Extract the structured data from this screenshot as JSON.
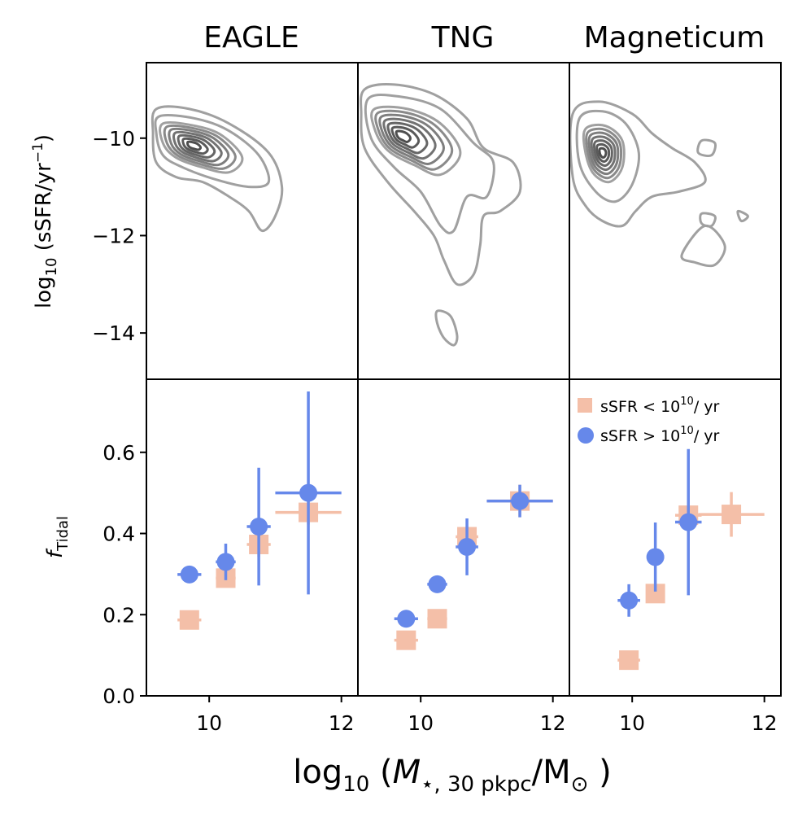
{
  "chart_data": {
    "type": "scatter",
    "panel_titles": [
      "EAGLE",
      "TNG",
      "Magneticum"
    ],
    "top_ylabel": {
      "prefix": "log",
      "sub": "10",
      "body": " (sSFR/yr",
      "sup": "−1",
      "suffix": ")"
    },
    "bottom_ylabel": {
      "main": "f",
      "sub": "Tidal"
    },
    "xlabel": {
      "prefix": "log",
      "sub1": "10",
      "open": " (",
      "mstar": "M",
      "sub2": "⋆, 30 pkpc",
      "slash": "/M",
      "sun": "⊙",
      "close": " )"
    },
    "xlim": [
      9.05,
      12.25
    ],
    "xticks": [
      10,
      12
    ],
    "xtick_labels": [
      "10",
      "12"
    ],
    "top_ylim": [
      -14.95,
      -8.45
    ],
    "top_yticks": [
      -10,
      -12,
      -14
    ],
    "top_ytick_labels": [
      "−10",
      "−12",
      "−14"
    ],
    "bottom_ylim": [
      0.0,
      0.78
    ],
    "bottom_yticks": [
      0.0,
      0.2,
      0.4,
      0.6
    ],
    "bottom_ytick_labels": [
      "0.0",
      "0.2",
      "0.4",
      "0.6"
    ],
    "legend": [
      {
        "name": "sSFR < 10^10 / yr",
        "label_main": "sSFR < 10",
        "label_sup": "10",
        "label_tail": "/ yr",
        "color": "#f4bfa8",
        "marker": "square"
      },
      {
        "name": "sSFR > 10^10 / yr",
        "label_main": "sSFR > 10",
        "label_sup": "10",
        "label_tail": "/ yr",
        "color": "#6688ea",
        "marker": "circle"
      }
    ],
    "colors": {
      "quiescent": "#f4bfa8",
      "starforming": "#6688ea",
      "contour_dark": "#555555",
      "contour_light": "#a0a0a0"
    },
    "panels": [
      {
        "name": "EAGLE",
        "density_peak": {
          "x": 9.75,
          "y": -10.15
        },
        "contours": [
          [
            [
              9.2,
              -9.4
            ],
            [
              9.7,
              -9.4
            ],
            [
              10.3,
              -9.7
            ],
            [
              10.9,
              -10.3
            ],
            [
              11.1,
              -11.0
            ],
            [
              11.0,
              -11.6
            ],
            [
              10.8,
              -11.9
            ],
            [
              10.6,
              -11.5
            ],
            [
              10.3,
              -11.2
            ],
            [
              9.9,
              -10.9
            ],
            [
              9.5,
              -10.8
            ],
            [
              9.2,
              -10.5
            ],
            [
              9.15,
              -9.9
            ]
          ],
          [
            [
              9.25,
              -9.55
            ],
            [
              9.8,
              -9.6
            ],
            [
              10.3,
              -9.85
            ],
            [
              10.75,
              -10.35
            ],
            [
              10.9,
              -10.9
            ],
            [
              10.6,
              -11.0
            ],
            [
              10.1,
              -10.85
            ],
            [
              9.6,
              -10.6
            ],
            [
              9.3,
              -10.35
            ],
            [
              9.2,
              -9.9
            ]
          ],
          [
            [
              9.3,
              -9.7
            ],
            [
              9.8,
              -9.75
            ],
            [
              10.2,
              -9.95
            ],
            [
              10.5,
              -10.4
            ],
            [
              10.3,
              -10.7
            ],
            [
              9.9,
              -10.6
            ],
            [
              9.5,
              -10.4
            ],
            [
              9.3,
              -10.1
            ]
          ]
        ],
        "series": [
          {
            "name": "quiescent",
            "points": [
              {
                "x": 9.7,
                "y": 0.187,
                "xerr": 0.18,
                "yerr": 0.02
              },
              {
                "x": 10.25,
                "y": 0.29,
                "xerr": 0.15,
                "yerr": 0.02
              },
              {
                "x": 10.75,
                "y": 0.373,
                "xerr": 0.18,
                "yerr": 0.03
              },
              {
                "x": 11.5,
                "y": 0.452,
                "xerr": 0.5,
                "yerr": 0.03
              }
            ]
          },
          {
            "name": "starforming",
            "points": [
              {
                "x": 9.7,
                "y": 0.299,
                "xerr": 0.18,
                "yerr": 0.015
              },
              {
                "x": 10.25,
                "y": 0.33,
                "xerr": 0.15,
                "yerr": 0.045
              },
              {
                "x": 10.75,
                "y": 0.417,
                "xerr": 0.18,
                "yerr": 0.145
              },
              {
                "x": 11.5,
                "y": 0.5,
                "xerr": 0.5,
                "yerr": 0.25
              }
            ]
          }
        ]
      },
      {
        "name": "TNG",
        "density_peak": {
          "x": 9.7,
          "y": -9.95
        },
        "contours": [
          [
            [
              9.15,
              -9.0
            ],
            [
              9.6,
              -8.9
            ],
            [
              10.2,
              -9.1
            ],
            [
              10.7,
              -9.6
            ],
            [
              10.95,
              -10.2
            ],
            [
              11.4,
              -10.5
            ],
            [
              11.5,
              -11.1
            ],
            [
              11.2,
              -11.5
            ],
            [
              10.95,
              -11.6
            ],
            [
              10.9,
              -12.2
            ],
            [
              10.8,
              -12.8
            ],
            [
              10.55,
              -13.0
            ],
            [
              10.35,
              -12.5
            ],
            [
              10.2,
              -12.0
            ],
            [
              9.9,
              -11.5
            ],
            [
              9.5,
              -10.9
            ],
            [
              9.15,
              -10.2
            ],
            [
              9.1,
              -9.5
            ]
          ],
          [
            [
              9.2,
              -9.2
            ],
            [
              9.7,
              -9.15
            ],
            [
              10.3,
              -9.4
            ],
            [
              10.8,
              -10.1
            ],
            [
              11.1,
              -10.5
            ],
            [
              11.0,
              -11.2
            ],
            [
              10.7,
              -11.2
            ],
            [
              10.5,
              -11.9
            ],
            [
              10.3,
              -11.8
            ],
            [
              10.0,
              -11.1
            ],
            [
              9.6,
              -10.6
            ],
            [
              9.25,
              -10.0
            ]
          ],
          [
            [
              9.3,
              -9.4
            ],
            [
              9.8,
              -9.4
            ],
            [
              10.3,
              -9.7
            ],
            [
              10.6,
              -10.3
            ],
            [
              10.3,
              -10.75
            ],
            [
              9.9,
              -10.55
            ],
            [
              9.5,
              -10.25
            ],
            [
              9.3,
              -9.8
            ]
          ],
          [
            [
              10.25,
              -13.55
            ],
            [
              10.45,
              -13.65
            ],
            [
              10.55,
              -14.05
            ],
            [
              10.5,
              -14.25
            ],
            [
              10.35,
              -14.1
            ],
            [
              10.25,
              -13.8
            ]
          ]
        ],
        "series": [
          {
            "name": "quiescent",
            "points": [
              {
                "x": 9.78,
                "y": 0.137,
                "xerr": 0.18,
                "yerr": 0.015
              },
              {
                "x": 10.25,
                "y": 0.19,
                "xerr": 0.15,
                "yerr": 0.015
              },
              {
                "x": 10.7,
                "y": 0.392,
                "xerr": 0.17,
                "yerr": 0.025
              },
              {
                "x": 11.5,
                "y": 0.48,
                "xerr": 0.5,
                "yerr": 0.04
              }
            ]
          },
          {
            "name": "starforming",
            "points": [
              {
                "x": 9.78,
                "y": 0.19,
                "xerr": 0.18,
                "yerr": 0.015
              },
              {
                "x": 10.25,
                "y": 0.275,
                "xerr": 0.15,
                "yerr": 0.02
              },
              {
                "x": 10.7,
                "y": 0.367,
                "xerr": 0.17,
                "yerr": 0.07
              },
              {
                "x": 11.5,
                "y": 0.48,
                "xerr": 0.5,
                "yerr": 0.04
              }
            ]
          }
        ]
      },
      {
        "name": "Magneticum",
        "density_peak": {
          "x": 9.55,
          "y": -10.3
        },
        "contours": [
          [
            [
              9.1,
              -9.5
            ],
            [
              9.5,
              -9.25
            ],
            [
              10.0,
              -9.5
            ],
            [
              10.3,
              -9.9
            ],
            [
              10.6,
              -10.2
            ],
            [
              10.95,
              -10.5
            ],
            [
              11.1,
              -10.9
            ],
            [
              10.7,
              -11.1
            ],
            [
              10.3,
              -11.2
            ],
            [
              10.05,
              -11.5
            ],
            [
              9.85,
              -11.8
            ],
            [
              9.55,
              -11.7
            ],
            [
              9.3,
              -11.4
            ],
            [
              9.1,
              -10.8
            ]
          ],
          [
            [
              9.2,
              -9.6
            ],
            [
              9.55,
              -9.45
            ],
            [
              9.9,
              -9.7
            ],
            [
              10.1,
              -10.3
            ],
            [
              10.0,
              -10.95
            ],
            [
              9.75,
              -11.3
            ],
            [
              9.45,
              -11.1
            ],
            [
              9.2,
              -10.5
            ]
          ],
          [
            [
              9.3,
              -9.8
            ],
            [
              9.6,
              -9.75
            ],
            [
              9.85,
              -10.05
            ],
            [
              9.85,
              -10.6
            ],
            [
              9.65,
              -10.9
            ],
            [
              9.4,
              -10.7
            ],
            [
              9.28,
              -10.2
            ]
          ],
          [
            [
              11.05,
              -10.05
            ],
            [
              11.25,
              -10.1
            ],
            [
              11.2,
              -10.35
            ],
            [
              11.0,
              -10.3
            ]
          ],
          [
            [
              11.05,
              -11.55
            ],
            [
              11.25,
              -11.6
            ],
            [
              11.2,
              -11.8
            ],
            [
              11.05,
              -11.75
            ]
          ],
          [
            [
              11.6,
              -11.5
            ],
            [
              11.75,
              -11.6
            ],
            [
              11.65,
              -11.7
            ]
          ],
          [
            [
              10.75,
              -12.4
            ],
            [
              11.1,
              -11.8
            ],
            [
              11.4,
              -12.2
            ],
            [
              11.25,
              -12.6
            ],
            [
              10.95,
              -12.55
            ]
          ]
        ],
        "series": [
          {
            "name": "quiescent",
            "points": [
              {
                "x": 9.95,
                "y": 0.088,
                "xerr": 0.17,
                "yerr": 0.012
              },
              {
                "x": 10.35,
                "y": 0.252,
                "xerr": 0.13,
                "yerr": 0.02
              },
              {
                "x": 10.85,
                "y": 0.445,
                "xerr": 0.2,
                "yerr": 0.03
              },
              {
                "x": 11.5,
                "y": 0.447,
                "xerr": 0.5,
                "yerr": 0.055
              }
            ]
          },
          {
            "name": "starforming",
            "points": [
              {
                "x": 9.95,
                "y": 0.235,
                "xerr": 0.17,
                "yerr": 0.04
              },
              {
                "x": 10.35,
                "y": 0.342,
                "xerr": 0.13,
                "yerr": 0.085
              },
              {
                "x": 10.85,
                "y": 0.428,
                "xerr": 0.2,
                "yerr": 0.18
              }
            ]
          }
        ]
      }
    ]
  }
}
